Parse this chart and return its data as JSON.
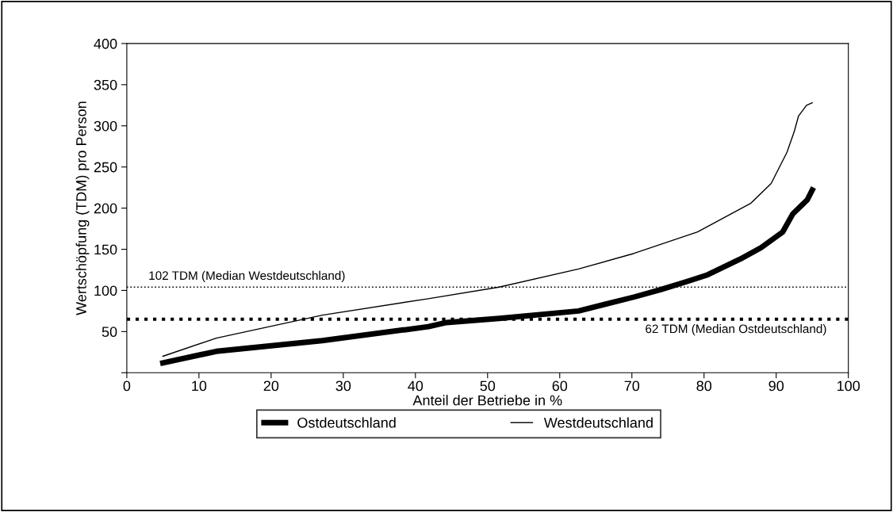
{
  "chart_data": {
    "type": "line",
    "xlabel": "Anteil der Betriebe in %",
    "ylabel": "Wertschöpfung (TDM) pro Person",
    "xlim": [
      0,
      100
    ],
    "xticks": [
      0,
      10,
      20,
      30,
      40,
      50,
      60,
      70,
      80,
      90,
      100
    ],
    "ylim": [
      0,
      400
    ],
    "yticks": [
      {
        "value": 0,
        "label": null
      },
      50,
      100,
      150,
      200,
      250,
      300,
      350,
      400
    ],
    "grid": false,
    "legend": "bottom",
    "marker": "none",
    "series": [
      {
        "name": "Ostdeutschland",
        "color": "#000000",
        "line_style": "solid",
        "x": [
          5,
          12.4,
          27.1,
          41.8,
          44.3,
          51.6,
          62.6,
          70.3,
          74,
          77.7,
          80.5,
          85,
          87.9,
          90.9,
          92.3,
          94.3,
          95
        ],
        "values": [
          12,
          26,
          39,
          56,
          61,
          66,
          75,
          92,
          101,
          111,
          119,
          138,
          152,
          171,
          193,
          210,
          222
        ]
      },
      {
        "name": "Westdeutschland",
        "color": "#000000",
        "line_style": "solid",
        "x": [
          5,
          12.4,
          27.1,
          41.8,
          51.6,
          62.6,
          70.3,
          74.7,
          79.1,
          86.5,
          89.3,
          91.5,
          92.5,
          93.1,
          94.2,
          95
        ],
        "values": [
          20,
          42,
          70,
          90,
          104,
          126,
          145,
          158,
          171,
          206,
          230,
          268,
          293,
          312,
          325,
          328
        ]
      }
    ],
    "ref_lines": [
      {
        "axis": "y",
        "value": 104,
        "label": "102 TDM (Median Westdeutschland)",
        "color": "#000000",
        "line_style": "dotted"
      },
      {
        "axis": "y",
        "value": 65,
        "label": "62 TDM (Median Ostdeutschland)",
        "color": "#000000",
        "line_style": "dotted"
      }
    ]
  }
}
